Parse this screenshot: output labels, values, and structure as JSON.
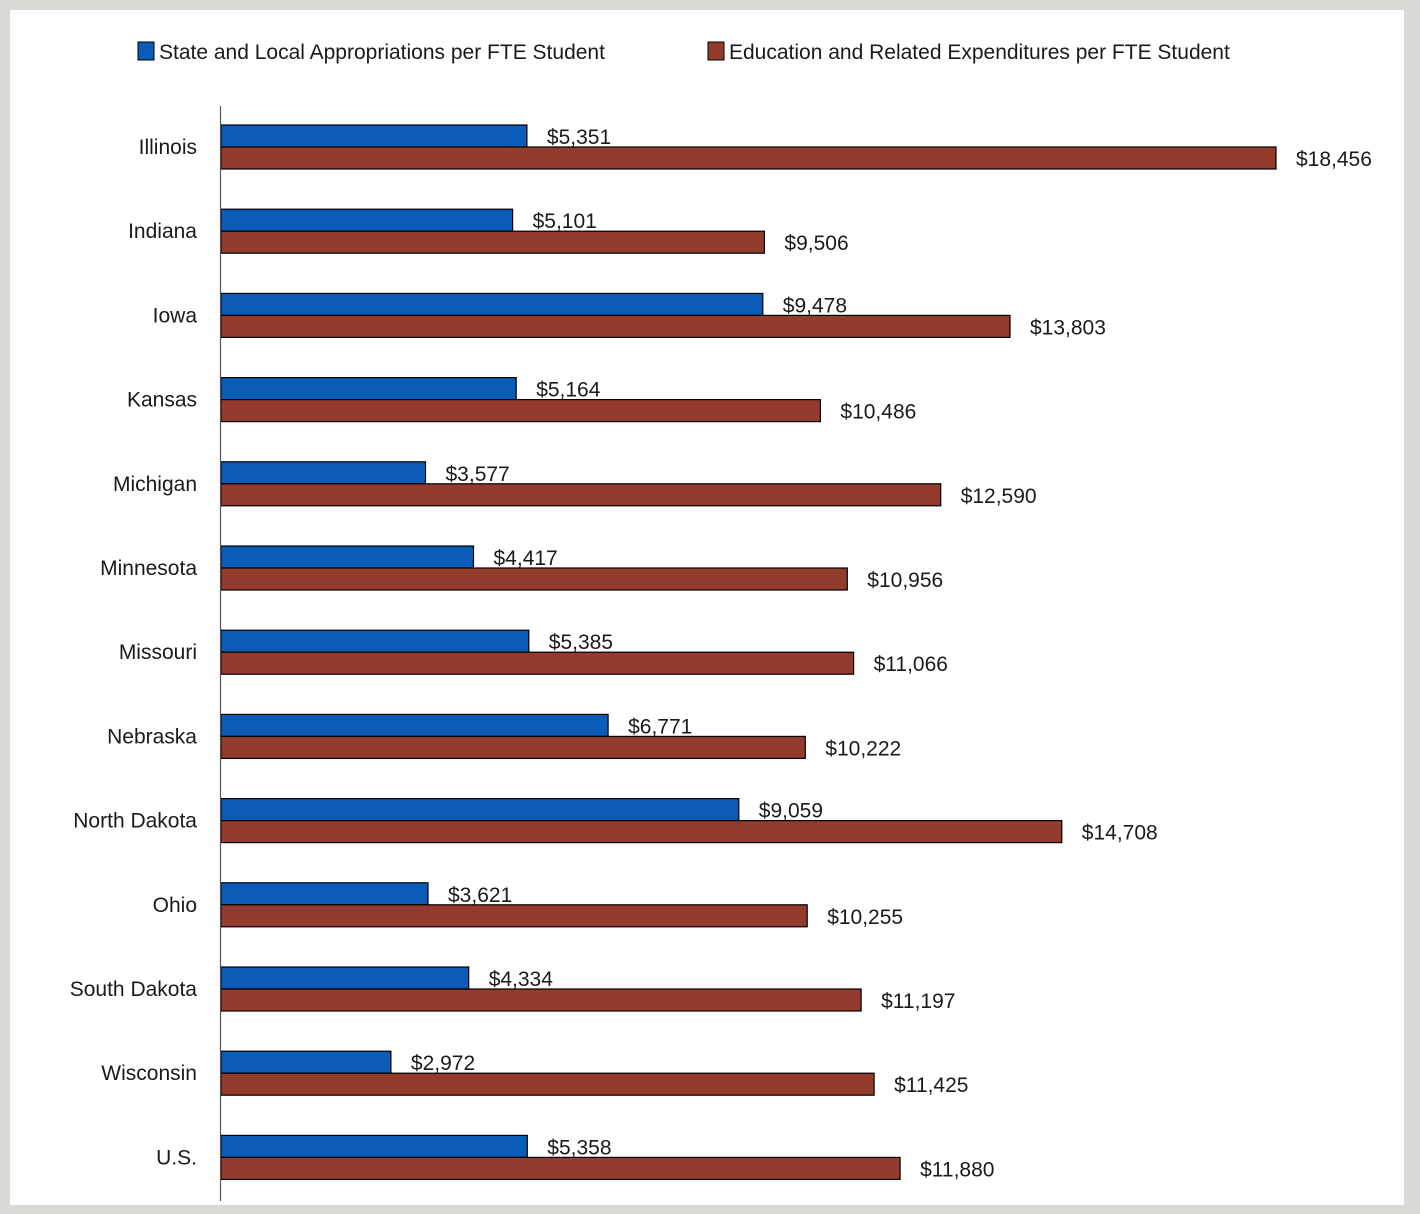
{
  "chart_data": {
    "type": "bar",
    "orientation": "horizontal",
    "categories": [
      "Illinois",
      "Indiana",
      "Iowa",
      "Kansas",
      "Michigan",
      "Minnesota",
      "Missouri",
      "Nebraska",
      "North Dakota",
      "Ohio",
      "South Dakota",
      "Wisconsin",
      "U.S."
    ],
    "series": [
      {
        "name": "State and Local Appropriations per FTE Student",
        "color": "#0b5cb8",
        "values": [
          5351,
          5101,
          9478,
          5164,
          3577,
          4417,
          5385,
          6771,
          9059,
          3621,
          4334,
          2972,
          5358
        ],
        "labels": [
          "$5,351",
          "$5,101",
          "$9,478",
          "$5,164",
          "$3,577",
          "$4,417",
          "$5,385",
          "$6,771",
          "$9,059",
          "$3,621",
          "$4,334",
          "$2,972",
          "$5,358"
        ]
      },
      {
        "name": "Education and Related Expenditures per FTE Student",
        "color": "#933b2c",
        "values": [
          18456,
          9506,
          13803,
          10486,
          12590,
          10956,
          11066,
          10222,
          14708,
          10255,
          11197,
          11425,
          11880
        ],
        "labels": [
          "$18,456",
          "$9,506",
          "$13,803",
          "$10,486",
          "$12,590",
          "$10,956",
          "$11,066",
          "$10,222",
          "$14,708",
          "$10,255",
          "$11,197",
          "$11,425",
          "$11,880"
        ]
      }
    ],
    "xlim": [
      0,
      18456
    ],
    "legend_position": "top",
    "grid": false,
    "title": "",
    "xlabel": "",
    "ylabel": ""
  }
}
